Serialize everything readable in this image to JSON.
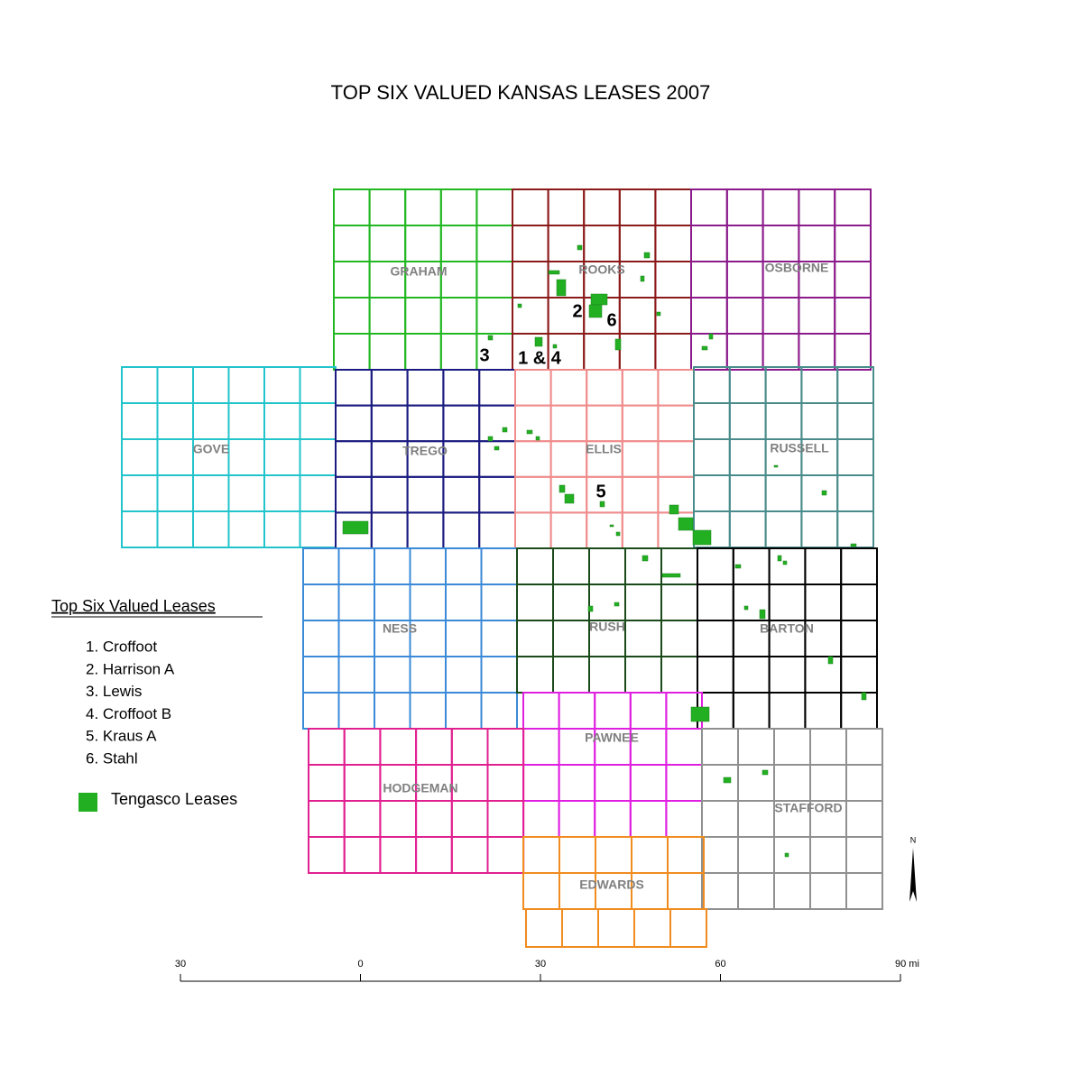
{
  "title": "TOP SIX VALUED KANSAS LEASES 2007",
  "counties": [
    {
      "name": "GRAHAM",
      "color": "#22b822"
    },
    {
      "name": "ROOKS",
      "color": "#8b1a1a"
    },
    {
      "name": "OSBORNE",
      "color": "#8b1a8b"
    },
    {
      "name": "GOVE",
      "color": "#22c4cc"
    },
    {
      "name": "TREGO",
      "color": "#1a1a80"
    },
    {
      "name": "ELLIS",
      "color": "#f08c8c"
    },
    {
      "name": "RUSSELL",
      "color": "#4a8c8c"
    },
    {
      "name": "NESS",
      "color": "#3a8ad8"
    },
    {
      "name": "RUSH",
      "color": "#1a4a1a"
    },
    {
      "name": "BARTON",
      "color": "#000000"
    },
    {
      "name": "PAWNEE",
      "color": "#e020e0"
    },
    {
      "name": "HODGEMAN",
      "color": "#e02090"
    },
    {
      "name": "STAFFORD",
      "color": "#909090"
    },
    {
      "name": "EDWARDS",
      "color": "#f08c20"
    }
  ],
  "lease_color": "#22b022",
  "lease_labels": [
    "3",
    "1 & 4",
    "2",
    "6",
    "5"
  ],
  "legend": {
    "title": "Top Six Valued Leases",
    "items": [
      "1. Croffoot",
      "2. Harrison A",
      "3. Lewis",
      "4. Croffoot B",
      "5. Kraus A",
      "6. Stahl"
    ],
    "tengasco": "Tengasco Leases"
  },
  "scale_bar": {
    "labels": [
      "30",
      "0",
      "30",
      "60",
      "90 mi"
    ]
  },
  "north": "N"
}
